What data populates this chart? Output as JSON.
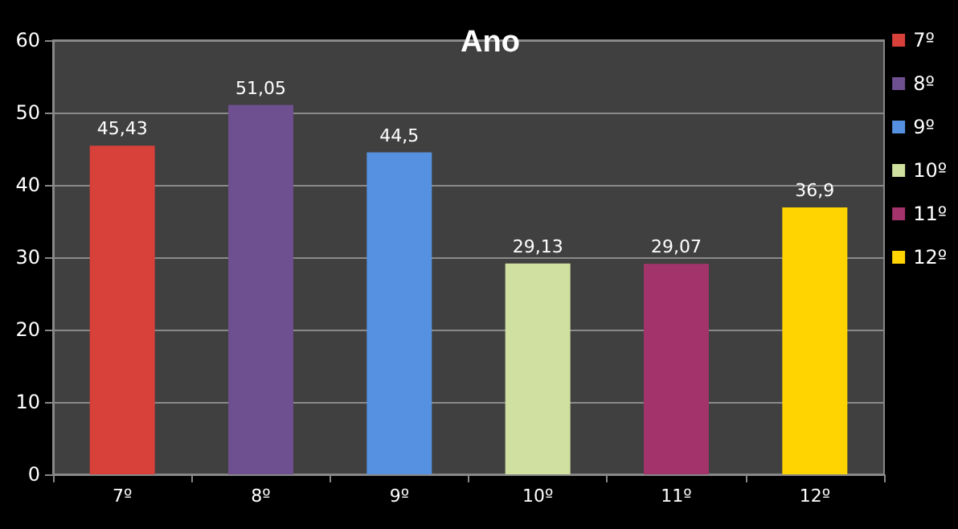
{
  "chart_data": {
    "type": "bar",
    "title": "Ano",
    "categories": [
      "7º",
      "8º",
      "9º",
      "10º",
      "11º",
      "12º"
    ],
    "series": [
      {
        "name": "7º",
        "color": "#d8403a",
        "values": [
          45.43,
          null,
          null,
          null,
          null,
          null
        ],
        "value_labels": [
          "45,43",
          null,
          null,
          null,
          null,
          null
        ]
      },
      {
        "name": "8º",
        "color": "#6e4f8f",
        "values": [
          null,
          51.05,
          null,
          null,
          null,
          null
        ],
        "value_labels": [
          null,
          "51,05",
          null,
          null,
          null,
          null
        ]
      },
      {
        "name": "9º",
        "color": "#5591e0",
        "values": [
          null,
          null,
          44.5,
          null,
          null,
          null
        ],
        "value_labels": [
          null,
          null,
          "44,5",
          null,
          null,
          null
        ]
      },
      {
        "name": "10º",
        "color": "#cfe0a0",
        "values": [
          null,
          null,
          null,
          29.13,
          null,
          null
        ],
        "value_labels": [
          null,
          null,
          null,
          "29,13",
          null,
          null
        ]
      },
      {
        "name": "11º",
        "color": "#a3336b",
        "values": [
          null,
          null,
          null,
          null,
          29.07,
          null
        ],
        "value_labels": [
          null,
          null,
          null,
          null,
          "29,07",
          null
        ]
      },
      {
        "name": "12º",
        "color": "#ffd400",
        "values": [
          null,
          null,
          null,
          null,
          null,
          36.9
        ],
        "value_labels": [
          null,
          null,
          null,
          null,
          null,
          "36,9"
        ]
      }
    ],
    "ylim": [
      0,
      60
    ],
    "yticks": [
      0,
      10,
      20,
      30,
      40,
      50,
      60
    ],
    "grid": "y",
    "legend": "right"
  }
}
